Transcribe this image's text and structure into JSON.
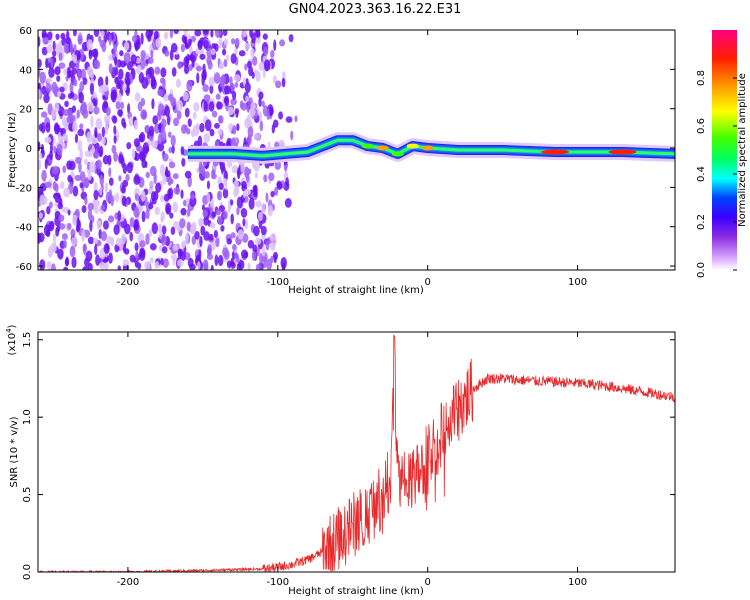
{
  "title": "GN04.2023.363.16.22.E31",
  "chart_data": [
    {
      "type": "heatmap",
      "xlabel": "Height of straight line (km)",
      "ylabel": "Frequency (Hz)",
      "xlim": [
        -260,
        165
      ],
      "ylim": [
        -62,
        60
      ],
      "xticks": [
        -200,
        -100,
        0,
        100
      ],
      "yticks": [
        -60,
        -40,
        -20,
        0,
        20,
        40,
        60
      ],
      "colorbar": {
        "label": "Normalized spectral amplitude",
        "range": [
          0,
          1
        ],
        "ticks": [
          "0.0",
          "0.2",
          "0.4",
          "0.6",
          "0.8"
        ],
        "colors": [
          "#ffffff",
          "#d9a6ff",
          "#8a2be2",
          "#3a00ff",
          "#0040ff",
          "#00ffff",
          "#00ff66",
          "#40ff00",
          "#ffff00",
          "#ffa000",
          "#ff2000",
          "#ff0080"
        ]
      },
      "ridge": [
        {
          "x": -160,
          "f": -3,
          "amp": 0.25
        },
        {
          "x": -130,
          "f": -3,
          "amp": 0.3
        },
        {
          "x": -110,
          "f": -4,
          "amp": 0.35
        },
        {
          "x": -95,
          "f": -3,
          "amp": 0.4
        },
        {
          "x": -80,
          "f": -2,
          "amp": 0.4
        },
        {
          "x": -70,
          "f": 1,
          "amp": 0.45
        },
        {
          "x": -60,
          "f": 4,
          "amp": 0.45
        },
        {
          "x": -50,
          "f": 4,
          "amp": 0.5
        },
        {
          "x": -40,
          "f": 1,
          "amp": 0.6
        },
        {
          "x": -30,
          "f": 0,
          "amp": 0.85
        },
        {
          "x": -20,
          "f": -3,
          "amp": 0.6
        },
        {
          "x": -10,
          "f": 1,
          "amp": 0.75
        },
        {
          "x": 0,
          "f": 0,
          "amp": 0.8
        },
        {
          "x": 20,
          "f": -1,
          "amp": 0.45
        },
        {
          "x": 50,
          "f": -1,
          "amp": 0.45
        },
        {
          "x": 85,
          "f": -2,
          "amp": 0.9
        },
        {
          "x": 110,
          "f": -2,
          "amp": 0.5
        },
        {
          "x": 130,
          "f": -2,
          "amp": 0.95
        },
        {
          "x": 165,
          "f": -3,
          "amp": 0.5
        }
      ]
    },
    {
      "type": "line",
      "xlabel": "Height of straight line (km)",
      "ylabel": "SNR (10 * v/v)",
      "y_multiplier_label": "(x10",
      "y_multiplier_exp": "4",
      "xlim": [
        -260,
        165
      ],
      "ylim": [
        0,
        1.55
      ],
      "xticks": [
        -200,
        -100,
        0,
        100
      ],
      "yticks": [
        "0.0",
        "0.5",
        "1.0",
        "1.5"
      ],
      "series": [
        {
          "color": "#e8282a",
          "x": [
            -260,
            -200,
            -150,
            -110,
            -100,
            -90,
            -80,
            -70,
            -60,
            -50,
            -40,
            -30,
            -25,
            -22,
            -20,
            -15,
            -10,
            -5,
            0,
            10,
            20,
            30,
            40,
            50,
            60,
            80,
            100,
            120,
            140,
            165
          ],
          "y": [
            0.0,
            0.0,
            0.01,
            0.02,
            0.03,
            0.05,
            0.08,
            0.13,
            0.2,
            0.3,
            0.38,
            0.5,
            0.6,
            1.52,
            0.65,
            0.55,
            0.6,
            0.65,
            0.75,
            0.9,
            1.05,
            1.18,
            1.25,
            1.25,
            1.24,
            1.23,
            1.22,
            1.2,
            1.17,
            1.13
          ]
        }
      ]
    }
  ]
}
